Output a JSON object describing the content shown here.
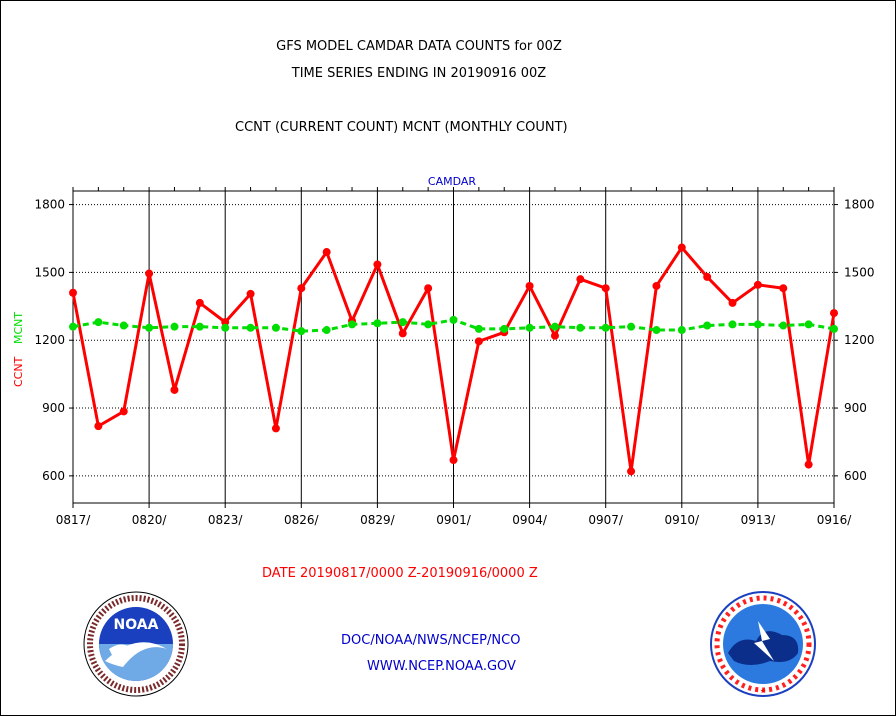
{
  "header": {
    "title_line1": "GFS MODEL CAMDAR DATA COUNTS for 00Z",
    "title_line2": "TIME SERIES ENDING IN 20190916 00Z",
    "subtitle": "CCNT (CURRENT COUNT) MCNT (MONTHLY COUNT)"
  },
  "footer": {
    "date_range": "DATE 20190817/0000 Z-20190916/0000 Z",
    "org": "DOC/NOAA/NWS/NCEP/NCO",
    "url": "WWW.NCEP.NOAA.GOV"
  },
  "logos": {
    "noaa_text": "NOAA",
    "nws_text": "NATIONAL WEATHER SERVICE"
  },
  "colors": {
    "ccnt": "#ff0000",
    "mcnt": "#00dd00",
    "text": "#000000",
    "blue_text": "#0000cc",
    "red_text": "#ff0000"
  },
  "chart_data": {
    "type": "line",
    "title": "CAMDAR",
    "ylabel_left": [
      "CCNT",
      "MCNT"
    ],
    "ylim": [
      480,
      1860
    ],
    "yticks": [
      600,
      900,
      1200,
      1500,
      1800
    ],
    "x_tick_labels": [
      "0817/",
      "0820/",
      "0823/",
      "0826/",
      "0829/",
      "0901/",
      "0904/",
      "0907/",
      "0910/",
      "0913/",
      "0916/"
    ],
    "x_tick_day_index": [
      0,
      3,
      6,
      9,
      12,
      15,
      18,
      21,
      24,
      27,
      30
    ],
    "x_count": 31,
    "grid": true,
    "series": [
      {
        "name": "CCNT",
        "color": "#ff0000",
        "values": [
          1410,
          820,
          885,
          1495,
          980,
          1365,
          1280,
          1405,
          810,
          1430,
          1590,
          1285,
          1535,
          1230,
          1430,
          670,
          1195,
          1235,
          1440,
          1220,
          1470,
          1430,
          620,
          1440,
          1610,
          1480,
          1365,
          1445,
          1430,
          650,
          1320
        ]
      },
      {
        "name": "MCNT",
        "color": "#00dd00",
        "values": [
          1260,
          1280,
          1265,
          1255,
          1260,
          1260,
          1255,
          1255,
          1255,
          1240,
          1245,
          1270,
          1275,
          1280,
          1270,
          1290,
          1250,
          1250,
          1255,
          1260,
          1255,
          1255,
          1260,
          1245,
          1245,
          1265,
          1270,
          1270,
          1265,
          1270,
          1250
        ]
      }
    ]
  }
}
